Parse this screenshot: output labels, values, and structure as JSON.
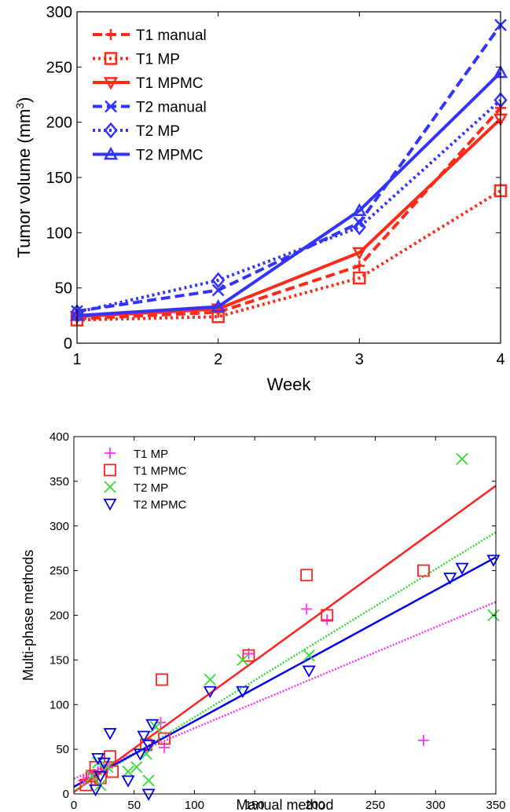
{
  "chart_data": [
    {
      "type": "line",
      "xlabel": "Week",
      "ylabel": "Tumor volume (mm",
      "ylabel_sup": "3",
      "ylabel_close": ")",
      "x": [
        1,
        2,
        3,
        4
      ],
      "xlim": [
        1,
        4
      ],
      "ylim": [
        0,
        300
      ],
      "xticks": [
        "1",
        "2",
        "3",
        "4"
      ],
      "yticks": [
        "0",
        "50",
        "100",
        "150",
        "200",
        "250",
        "300"
      ],
      "legend_position": "top-left",
      "series": [
        {
          "name": "T1 manual",
          "values": [
            22,
            28,
            70,
            213
          ],
          "color": "#ff2a1a",
          "dash": "dashed",
          "marker": "plus"
        },
        {
          "name": "T1 MP",
          "values": [
            21,
            24,
            59,
            138
          ],
          "color": "#ff2a1a",
          "dash": "dotted",
          "marker": "square"
        },
        {
          "name": "T1 MPMC",
          "values": [
            24,
            31,
            82,
            203
          ],
          "color": "#ff2a1a",
          "dash": "solid",
          "marker": "triangle-down"
        },
        {
          "name": "T2 manual",
          "values": [
            29,
            48,
            109,
            288
          ],
          "color": "#3333ff",
          "dash": "dashed",
          "marker": "x"
        },
        {
          "name": "T2 MP",
          "values": [
            28,
            57,
            105,
            220
          ],
          "color": "#3333ff",
          "dash": "dotted",
          "marker": "diamond"
        },
        {
          "name": "T2 MPMC",
          "values": [
            25,
            33,
            120,
            245
          ],
          "color": "#3333ff",
          "dash": "solid",
          "marker": "triangle-up"
        }
      ]
    },
    {
      "type": "scatter",
      "xlabel": "Manual method",
      "ylabel": "Multi-phase methods",
      "xlim": [
        0,
        350
      ],
      "ylim": [
        0,
        400
      ],
      "xticks": [
        "0",
        "50",
        "100",
        "150",
        "200",
        "250",
        "300",
        "350"
      ],
      "yticks": [
        "0",
        "50",
        "100",
        "150",
        "200",
        "250",
        "300",
        "350",
        "400"
      ],
      "legend_position": "top-left",
      "series": [
        {
          "name": "T1 MP",
          "color": "#ff33ff",
          "marker": "plus",
          "points": [
            [
              8,
              15
            ],
            [
              12,
              18
            ],
            [
              16,
              22
            ],
            [
              20,
              25
            ],
            [
              25,
              28
            ],
            [
              28,
              30
            ],
            [
              60,
              50
            ],
            [
              72,
              80
            ],
            [
              75,
              52
            ],
            [
              145,
              157
            ],
            [
              193,
              207
            ],
            [
              210,
              195
            ],
            [
              290,
              60
            ]
          ],
          "fit": [
            [
              0,
              17
            ],
            [
              350,
              215
            ]
          ],
          "fit_dash": "dotted"
        },
        {
          "name": "T1 MPMC",
          "color": "#ff2222",
          "marker": "square",
          "points": [
            [
              10,
              10
            ],
            [
              15,
              20
            ],
            [
              18,
              30
            ],
            [
              22,
              18
            ],
            [
              30,
              42
            ],
            [
              32,
              25
            ],
            [
              60,
              55
            ],
            [
              73,
              128
            ],
            [
              75,
              62
            ],
            [
              145,
              155
            ],
            [
              193,
              245
            ],
            [
              210,
              200
            ],
            [
              290,
              250
            ]
          ],
          "fit": [
            [
              0,
              2
            ],
            [
              350,
              345
            ]
          ],
          "fit_dash": "solid"
        },
        {
          "name": "T2 MP",
          "color": "#33dd33",
          "marker": "x",
          "points": [
            [
              15,
              20
            ],
            [
              20,
              35
            ],
            [
              22,
              10
            ],
            [
              28,
              30
            ],
            [
              45,
              25
            ],
            [
              52,
              30
            ],
            [
              60,
              45
            ],
            [
              62,
              15
            ],
            [
              68,
              75
            ],
            [
              113,
              128
            ],
            [
              140,
              150
            ],
            [
              195,
              155
            ],
            [
              322,
              375
            ],
            [
              348,
              200
            ]
          ],
          "fit": [
            [
              0,
              3
            ],
            [
              350,
              293
            ]
          ],
          "fit_dash": "dotted"
        },
        {
          "name": "T2 MPMC",
          "color": "#0000ee",
          "marker": "triangle-down",
          "points": [
            [
              18,
              5
            ],
            [
              20,
              40
            ],
            [
              22,
              20
            ],
            [
              25,
              35
            ],
            [
              30,
              68
            ],
            [
              45,
              15
            ],
            [
              55,
              45
            ],
            [
              58,
              65
            ],
            [
              62,
              0
            ],
            [
              62,
              55
            ],
            [
              65,
              78
            ],
            [
              113,
              115
            ],
            [
              140,
              115
            ],
            [
              195,
              138
            ],
            [
              312,
              242
            ],
            [
              322,
              253
            ],
            [
              348,
              262
            ]
          ],
          "fit": [
            [
              0,
              8
            ],
            [
              350,
              265
            ]
          ],
          "fit_dash": "solid"
        }
      ]
    }
  ]
}
